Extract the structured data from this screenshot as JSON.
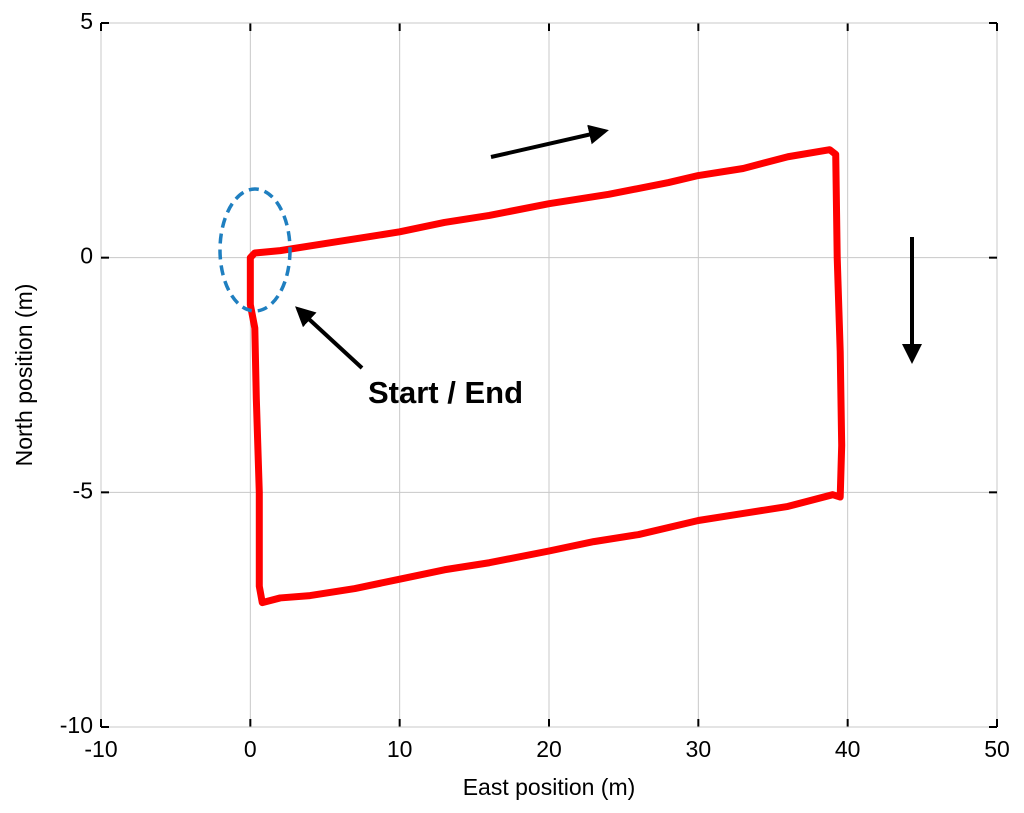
{
  "chart_data": {
    "type": "line",
    "x_label": "East position (m)",
    "y_label": "North position (m)",
    "annotation": "Start / End",
    "xlim": [
      -10,
      50
    ],
    "xticks": [
      -10,
      0,
      10,
      20,
      30,
      40,
      50
    ],
    "ylim": [
      -10,
      5
    ],
    "yticks": [
      -10,
      -5,
      0,
      5
    ],
    "grid": true,
    "x": [
      0,
      0.3,
      2,
      5,
      8,
      10,
      13,
      16,
      20,
      24,
      28,
      30,
      33,
      36,
      38.8,
      39.2,
      39.3,
      39.5,
      39.6,
      39.5,
      39,
      36,
      33,
      30,
      26,
      23,
      20,
      16,
      13,
      10,
      7,
      4,
      2,
      0.8,
      0.6,
      0.6,
      0.4,
      0.3,
      0,
      0
    ],
    "series": [
      {
        "color": "#ff0000",
        "values": [
          0,
          0.1,
          0.15,
          0.3,
          0.45,
          0.55,
          0.75,
          0.9,
          1.15,
          1.35,
          1.6,
          1.75,
          1.9,
          2.15,
          2.3,
          2.2,
          0,
          -2,
          -4,
          -5.1,
          -5.05,
          -5.3,
          -5.45,
          -5.6,
          -5.9,
          -6.05,
          -6.25,
          -6.5,
          -6.65,
          -6.85,
          -7.05,
          -7.2,
          -7.25,
          -7.35,
          -7,
          -5,
          -3,
          -1.5,
          -1,
          0
        ]
      }
    ]
  }
}
